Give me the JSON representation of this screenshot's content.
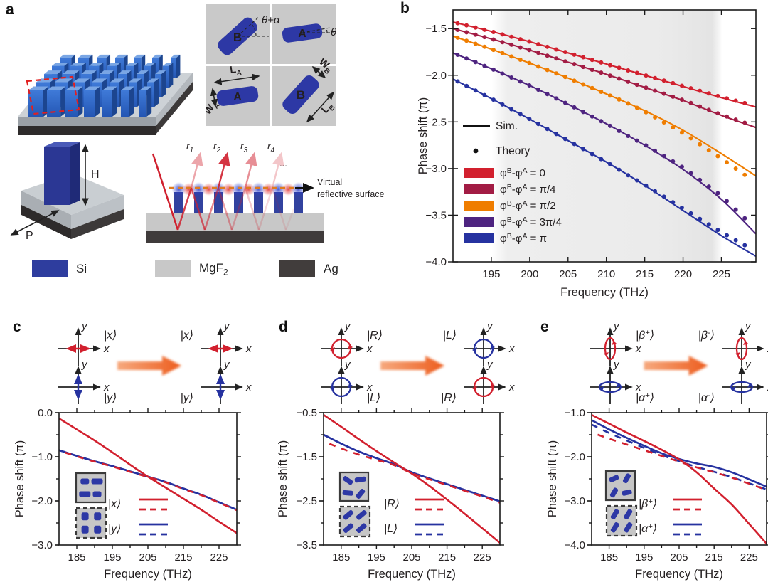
{
  "panels": {
    "a": {
      "label": "a"
    },
    "b": {
      "label": "b"
    },
    "c": {
      "label": "c"
    },
    "d": {
      "label": "d"
    },
    "e": {
      "label": "e"
    }
  },
  "panel_a": {
    "unit_cell": {
      "meta_atom_a": "A",
      "meta_atom_b": "B",
      "angle_top": "θ+α",
      "angle_right": "θ",
      "dim_la": "L_A",
      "dim_wa": "W_A",
      "dim_wb": "W_B",
      "dim_lb": "L_B"
    },
    "pillar": {
      "height_label": "H",
      "period_label": "P"
    },
    "reflection": {
      "rays": [
        "r_1",
        "r_2",
        "r_3",
        "r_4"
      ],
      "ellipsis": "...",
      "virtual_line1": "Virtual",
      "virtual_line2": "reflective surface",
      "dash_color": "#e07b1e",
      "ray_color": "#d0202e"
    },
    "materials": [
      {
        "name": "Si",
        "color": "#2e3d9e"
      },
      {
        "name": "MgF_2",
        "color": "#c8c8c8"
      },
      {
        "name": "Ag",
        "color": "#413d3c"
      }
    ],
    "colors": {
      "pillar_front": "#2f66c4",
      "pillar_side": "#1c458f",
      "pillar_top": "#7aa6e4",
      "outline_red": "#e21f1f"
    }
  },
  "transforms": {
    "c": {
      "axis_x": "x",
      "axis_y": "y",
      "cxL": 85,
      "cxR": 285,
      "left": [
        {
          "state": "|x⟩",
          "decor": "linear-h",
          "color": "#d2202e"
        },
        {
          "state": "|y⟩",
          "decor": "linear-v",
          "color": "#2632a0"
        }
      ],
      "right": [
        {
          "state": "|x⟩",
          "decor": "linear-h",
          "color": "#d2202e"
        },
        {
          "state": "|y⟩",
          "decor": "linear-v",
          "color": "#2632a0"
        }
      ]
    },
    "d": {
      "axis_x": "x",
      "axis_y": "y",
      "cxL": 85,
      "cxR": 285,
      "left": [
        {
          "state": "|R⟩",
          "decor": "circle",
          "color": "#d2202e"
        },
        {
          "state": "|L⟩",
          "decor": "circle",
          "color": "#2632a0"
        }
      ],
      "right": [
        {
          "state": "|L⟩",
          "decor": "circle",
          "color": "#2632a0"
        },
        {
          "state": "|R⟩",
          "decor": "circle",
          "color": "#d2202e"
        }
      ]
    },
    "e": {
      "axis_x": "x",
      "axis_y": "y",
      "cxL": 100,
      "cxR": 285,
      "left": [
        {
          "state": "|β^+⟩",
          "decor": "ellipse-v",
          "color": "#d2202e"
        },
        {
          "state": "|α^+⟩",
          "decor": "ellipse-h",
          "color": "#2632a0"
        }
      ],
      "right": [
        {
          "state": "|β^-⟩",
          "decor": "ellipse-v",
          "color": "#d2202e"
        },
        {
          "state": "|α^-⟩",
          "decor": "ellipse-h",
          "color": "#2632a0"
        }
      ]
    }
  },
  "chart_data": [
    {
      "panel": "b",
      "type": "line",
      "title": "",
      "xlabel": "Frequency (THz)",
      "ylabel": "Phase shift (π)",
      "xlim": [
        190,
        229.5
      ],
      "ylim": [
        -4.0,
        -1.3
      ],
      "xticks": [
        195,
        200,
        205,
        210,
        215,
        220,
        225
      ],
      "yticks": [
        -1.5,
        -2.0,
        -2.5,
        -3.0,
        -3.5,
        -4.0
      ],
      "shaded_band": [
        195,
        225
      ],
      "tick_style": "in",
      "legend_b": {
        "sim": "Sim.",
        "theory": "Theory"
      },
      "x": [
        190,
        195,
        200,
        205,
        210,
        215,
        220,
        225,
        229.5
      ],
      "series": [
        {
          "name": "φ^B-φ^A = 0",
          "color": "#d2202e",
          "style": "solid",
          "dots": true,
          "dot_dev": 0.01,
          "y": [
            -1.43,
            -1.53,
            -1.64,
            -1.76,
            -1.88,
            -2.0,
            -2.12,
            -2.24,
            -2.34
          ]
        },
        {
          "name": "φ^B-φ^A = π/4",
          "color": "#a21c44",
          "style": "solid",
          "dots": true,
          "dot_dev": 0.01,
          "y": [
            -1.5,
            -1.61,
            -1.73,
            -1.86,
            -1.99,
            -2.13,
            -2.27,
            -2.43,
            -2.56
          ]
        },
        {
          "name": "φ^B-φ^A = π/2",
          "color": "#ef7d00",
          "style": "solid",
          "dots": true,
          "dot_dev": -0.07,
          "y": [
            -1.58,
            -1.72,
            -1.87,
            -2.03,
            -2.2,
            -2.38,
            -2.59,
            -2.84,
            -3.08
          ]
        },
        {
          "name": "φ^B-φ^A = 3π/4",
          "color": "#4e2480",
          "style": "solid",
          "dots": true,
          "dot_dev": 0.05,
          "y": [
            -1.76,
            -1.93,
            -2.11,
            -2.31,
            -2.52,
            -2.75,
            -3.01,
            -3.33,
            -3.7
          ]
        },
        {
          "name": "φ^B-φ^A = π",
          "color": "#2632a0",
          "style": "solid",
          "dots": true,
          "dot_dev": 0.05,
          "y": [
            -2.04,
            -2.25,
            -2.47,
            -2.7,
            -2.93,
            -3.18,
            -3.45,
            -3.72,
            -3.94
          ]
        }
      ]
    },
    {
      "panel": "c",
      "type": "line",
      "xlabel": "Frequency (THz)",
      "ylabel": "Phase shift (π)",
      "xlim": [
        180,
        230
      ],
      "ylim": [
        -3.0,
        0.0
      ],
      "xticks": [
        185,
        195,
        205,
        215,
        225
      ],
      "xminor": [
        190,
        200,
        210,
        220
      ],
      "yticks": [
        0.0,
        -1.0,
        -2.0,
        -3.0
      ],
      "yminor": [
        -0.5,
        -1.5,
        -2.5
      ],
      "tick_style": "out",
      "x": [
        180,
        185,
        190,
        195,
        200,
        205,
        210,
        215,
        220,
        225,
        230
      ],
      "series": [
        {
          "name": "|y⟩ Sim.",
          "color": "#2632a0",
          "style": "solid",
          "y": [
            -0.85,
            -0.98,
            -1.1,
            -1.21,
            -1.33,
            -1.45,
            -1.57,
            -1.72,
            -1.86,
            -2.03,
            -2.2
          ]
        },
        {
          "name": "|y⟩ Theory",
          "color": "#2632a0",
          "style": "dashed",
          "dashoffset": 0,
          "y": [
            -0.85,
            -0.98,
            -1.1,
            -1.21,
            -1.33,
            -1.45,
            -1.57,
            -1.72,
            -1.86,
            -2.03,
            -2.2
          ]
        },
        {
          "name": "|x⟩ Theory",
          "color": "#d2202e",
          "style": "dashed",
          "dashoffset": 9,
          "y": [
            -0.86,
            -0.99,
            -1.11,
            -1.22,
            -1.34,
            -1.46,
            -1.58,
            -1.73,
            -1.87,
            -2.04,
            -2.21
          ]
        },
        {
          "name": "|x⟩ Sim.",
          "color": "#d2202e",
          "style": "solid",
          "y": [
            -0.13,
            -0.38,
            -0.63,
            -0.9,
            -1.18,
            -1.45,
            -1.7,
            -1.95,
            -2.2,
            -2.47,
            -2.73
          ]
        }
      ],
      "legend_cde": [
        {
          "label": "|x⟩",
          "color": "#d2202e"
        },
        {
          "label": "|y⟩",
          "color": "#2632a0"
        }
      ],
      "insets": [
        {
          "border": "solid",
          "x": 87,
          "y": 97,
          "s": 41,
          "bars": [
            {
              "fx": 0.3,
              "fy": 0.28,
              "w": 12,
              "h": 8,
              "rot": 0
            },
            {
              "fx": 0.72,
              "fy": 0.28,
              "w": 16,
              "h": 8,
              "rot": 0
            },
            {
              "fx": 0.3,
              "fy": 0.72,
              "w": 16,
              "h": 8,
              "rot": 0
            },
            {
              "fx": 0.72,
              "fy": 0.72,
              "w": 12,
              "h": 8,
              "rot": 0
            }
          ]
        },
        {
          "border": "dashed",
          "x": 87,
          "y": 146,
          "s": 42,
          "bars": [
            {
              "fx": 0.3,
              "fy": 0.28,
              "w": 10,
              "h": 11,
              "rot": 0
            },
            {
              "fx": 0.72,
              "fy": 0.28,
              "w": 10,
              "h": 11,
              "rot": 0
            },
            {
              "fx": 0.3,
              "fy": 0.72,
              "w": 10,
              "h": 11,
              "rot": 0
            },
            {
              "fx": 0.72,
              "fy": 0.72,
              "w": 10,
              "h": 11,
              "rot": 0
            }
          ]
        }
      ]
    },
    {
      "panel": "d",
      "type": "line",
      "xlabel": "Frequency (THz)",
      "ylabel": "Phase shift (π)",
      "xlim": [
        180,
        230
      ],
      "ylim": [
        -3.5,
        -0.5
      ],
      "xticks": [
        185,
        195,
        205,
        215,
        225
      ],
      "xminor": [
        190,
        200,
        210,
        220
      ],
      "yticks": [
        -0.5,
        -1.5,
        -2.5,
        -3.5
      ],
      "yminor": [
        -1.0,
        -2.0,
        -3.0
      ],
      "tick_style": "out",
      "x": [
        180,
        185,
        190,
        195,
        200,
        205,
        210,
        215,
        220,
        225,
        230
      ],
      "series": [
        {
          "name": "|L⟩ Sim.",
          "color": "#2632a0",
          "style": "solid",
          "y": [
            -1.0,
            -1.2,
            -1.38,
            -1.53,
            -1.67,
            -1.85,
            -1.99,
            -2.12,
            -2.25,
            -2.38,
            -2.51
          ]
        },
        {
          "name": "|L⟩ Theory",
          "color": "#2632a0",
          "style": "dashed",
          "dashoffset": 0,
          "y": [
            -1.0,
            -1.2,
            -1.38,
            -1.53,
            -1.67,
            -1.85,
            -1.99,
            -2.12,
            -2.25,
            -2.38,
            -2.51
          ]
        },
        {
          "name": "|R⟩ Theory",
          "color": "#d2202e",
          "style": "dashed",
          "dashoffset": 9,
          "y": [
            -1.15,
            -1.31,
            -1.45,
            -1.57,
            -1.69,
            -1.87,
            -2.01,
            -2.14,
            -2.27,
            -2.4,
            -2.54
          ]
        },
        {
          "name": "|R⟩ Sim.",
          "color": "#d2202e",
          "style": "solid",
          "y": [
            -0.55,
            -0.82,
            -1.1,
            -1.37,
            -1.63,
            -1.88,
            -2.16,
            -2.47,
            -2.79,
            -3.12,
            -3.45
          ]
        }
      ],
      "legend_cde": [
        {
          "label": "|R⟩",
          "color": "#d2202e"
        },
        {
          "label": "|L⟩",
          "color": "#2632a0"
        }
      ],
      "insets": [
        {
          "border": "solid",
          "x": 88,
          "y": 96,
          "s": 40,
          "bars": [
            {
              "fx": 0.28,
              "fy": 0.28,
              "w": 15,
              "h": 7,
              "rot": 35
            },
            {
              "fx": 0.72,
              "fy": 0.25,
              "w": 16,
              "h": 7,
              "rot": -8
            },
            {
              "fx": 0.28,
              "fy": 0.72,
              "w": 15,
              "h": 7,
              "rot": 5
            },
            {
              "fx": 0.72,
              "fy": 0.75,
              "w": 15,
              "h": 7,
              "rot": -50
            }
          ]
        },
        {
          "border": "dashed",
          "x": 88,
          "y": 144,
          "s": 42,
          "bars": [
            {
              "fx": 0.28,
              "fy": 0.28,
              "w": 16,
              "h": 7,
              "rot": -40
            },
            {
              "fx": 0.72,
              "fy": 0.28,
              "w": 16,
              "h": 7,
              "rot": -40
            },
            {
              "fx": 0.28,
              "fy": 0.72,
              "w": 16,
              "h": 7,
              "rot": -40
            },
            {
              "fx": 0.72,
              "fy": 0.72,
              "w": 16,
              "h": 7,
              "rot": -40
            }
          ]
        }
      ]
    },
    {
      "panel": "e",
      "type": "line",
      "xlabel": "Frequency (THz)",
      "ylabel": "Phase shift (π)",
      "xlim": [
        180,
        230
      ],
      "ylim": [
        -4.0,
        -1.0
      ],
      "xticks": [
        185,
        195,
        205,
        215,
        225
      ],
      "xminor": [
        190,
        200,
        210,
        220
      ],
      "yticks": [
        -1.0,
        -2.0,
        -3.0,
        -4.0
      ],
      "yminor": [
        -1.5,
        -2.5,
        -3.5
      ],
      "tick_style": "out",
      "x": [
        180,
        185,
        190,
        195,
        200,
        205,
        210,
        215,
        220,
        225,
        230
      ],
      "series": [
        {
          "name": "|α^+⟩ Sim.",
          "color": "#2632a0",
          "style": "solid",
          "y": [
            -1.17,
            -1.38,
            -1.57,
            -1.75,
            -1.92,
            -2.05,
            -2.15,
            -2.23,
            -2.35,
            -2.51,
            -2.68
          ]
        },
        {
          "name": "|α^+⟩ Theory",
          "color": "#2632a0",
          "style": "dashed",
          "dashoffset": 0,
          "y": [
            -1.27,
            -1.46,
            -1.63,
            -1.8,
            -1.96,
            -2.1,
            -2.23,
            -2.34,
            -2.46,
            -2.6,
            -2.74
          ]
        },
        {
          "name": "|β^+⟩ Theory",
          "color": "#d2202e",
          "style": "dashed",
          "dashoffset": 9,
          "y": [
            -1.45,
            -1.59,
            -1.72,
            -1.85,
            -1.98,
            -2.11,
            -2.24,
            -2.35,
            -2.47,
            -2.61,
            -2.75
          ]
        },
        {
          "name": "|β^+⟩ Sim.",
          "color": "#d2202e",
          "style": "solid",
          "y": [
            -1.05,
            -1.25,
            -1.45,
            -1.64,
            -1.84,
            -2.06,
            -2.35,
            -2.72,
            -3.08,
            -3.52,
            -3.97
          ]
        }
      ],
      "legend_cde": [
        {
          "label": "|β^+⟩",
          "color": "#d2202e"
        },
        {
          "label": "|α^+⟩",
          "color": "#2632a0"
        }
      ],
      "insets": [
        {
          "border": "solid",
          "x": 97,
          "y": 94,
          "s": 41,
          "bars": [
            {
              "fx": 0.28,
              "fy": 0.26,
              "w": 14,
              "h": 7,
              "rot": -25
            },
            {
              "fx": 0.72,
              "fy": 0.25,
              "w": 14,
              "h": 7,
              "rot": -60
            },
            {
              "fx": 0.28,
              "fy": 0.74,
              "w": 14,
              "h": 7,
              "rot": -60
            },
            {
              "fx": 0.72,
              "fy": 0.74,
              "w": 14,
              "h": 7,
              "rot": -12
            }
          ]
        },
        {
          "border": "dashed",
          "x": 98,
          "y": 143,
          "s": 42,
          "bars": [
            {
              "fx": 0.28,
              "fy": 0.28,
              "w": 15,
              "h": 7,
              "rot": -58
            },
            {
              "fx": 0.72,
              "fy": 0.28,
              "w": 15,
              "h": 7,
              "rot": -58
            },
            {
              "fx": 0.28,
              "fy": 0.72,
              "w": 15,
              "h": 7,
              "rot": -58
            },
            {
              "fx": 0.72,
              "fy": 0.72,
              "w": 15,
              "h": 7,
              "rot": -58
            }
          ]
        }
      ]
    }
  ]
}
